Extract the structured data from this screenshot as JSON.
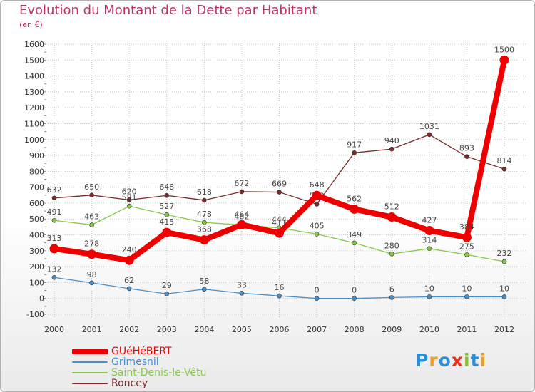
{
  "chart_data": {
    "type": "line",
    "title": "Evolution du Montant de la Dette par Habitant",
    "subtitle": "(en €)",
    "xlabel": "",
    "ylabel": "",
    "ylim": [
      -100,
      1600
    ],
    "yticks": [
      -100,
      0,
      100,
      200,
      300,
      400,
      500,
      600,
      700,
      800,
      900,
      1000,
      1100,
      1200,
      1300,
      1400,
      1500,
      1600
    ],
    "x": [
      "2000",
      "2001",
      "2002",
      "2003",
      "2004",
      "2005",
      "2006",
      "2007",
      "2008",
      "2009",
      "2010",
      "2011",
      "2012"
    ],
    "grid": true,
    "legend_position": "bottom-left",
    "series": [
      {
        "name": "Roncey",
        "color": "#7a2a2a",
        "values": [
          632,
          650,
          620,
          648,
          618,
          672,
          669,
          593,
          917,
          940,
          1031,
          893,
          814
        ],
        "labels": [
          "632",
          "650",
          "620",
          "648",
          "618",
          "672",
          "669",
          "593",
          "917",
          "940",
          "1031",
          "893",
          "814"
        ]
      },
      {
        "name": "Saint-Denis-le-Vêtu",
        "color": "#88c84a",
        "values": [
          491,
          463,
          581,
          527,
          478,
          462,
          444,
          405,
          349,
          280,
          314,
          275,
          232
        ],
        "labels": [
          "491",
          "463",
          "581",
          "527",
          "478",
          "462",
          "444",
          "405",
          "349",
          "280",
          "314",
          "275",
          "232"
        ]
      },
      {
        "name": "Grimesnil",
        "color": "#4a90c8",
        "values": [
          132,
          98,
          62,
          29,
          58,
          33,
          16,
          0,
          0,
          6,
          10,
          10,
          10
        ],
        "labels": [
          "132",
          "98",
          "62",
          "29",
          "58",
          "33",
          "16",
          "0",
          "0",
          "6",
          "10",
          "10",
          "10"
        ]
      },
      {
        "name": "GUéHéBERT",
        "color": "#ee0000",
        "values": [
          313,
          278,
          240,
          415,
          368,
          464,
          411,
          648,
          562,
          512,
          427,
          384,
          1500
        ],
        "labels": [
          "313",
          "278",
          "240",
          "415",
          "368",
          "464",
          "411",
          "648",
          "562",
          "512",
          "427",
          "384",
          "1500"
        ]
      }
    ]
  },
  "legend": {
    "items": [
      {
        "label": "GUéHéBERT",
        "color": "#ee0000",
        "thickness": "thick"
      },
      {
        "label": "Grimesnil",
        "color": "#4a90c8",
        "thickness": "thin"
      },
      {
        "label": "Saint-Denis-le-Vêtu",
        "color": "#88c84a",
        "thickness": "thin"
      },
      {
        "label": "Roncey",
        "color": "#7a2a2a",
        "thickness": "thin"
      }
    ]
  },
  "logo": {
    "text": "Proxiti",
    "letters": [
      {
        "char": "P",
        "color": "#2a8fd6"
      },
      {
        "char": "r",
        "color": "#f0a020"
      },
      {
        "char": "o",
        "color": "#2a8fd6"
      },
      {
        "char": "x",
        "color": "#e83020"
      },
      {
        "char": "i",
        "color": "#88c030"
      },
      {
        "char": "t",
        "color": "#2a8fd6"
      },
      {
        "char": "i",
        "color": "#f0a020"
      }
    ]
  }
}
